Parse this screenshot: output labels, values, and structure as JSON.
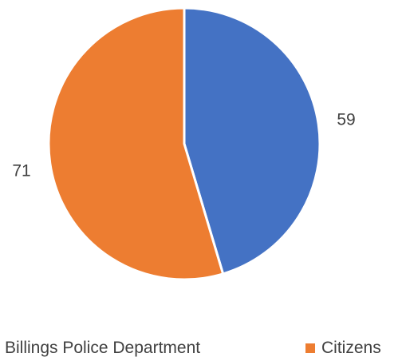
{
  "chart_data": {
    "type": "pie",
    "categories": [
      "Billings Police Department",
      "Citizens"
    ],
    "values": [
      59,
      71
    ],
    "colors": [
      "#4472c4",
      "#ed7d31"
    ],
    "data_labels": [
      "59",
      "71"
    ],
    "legend_position": "bottom",
    "start_angle": "top, clockwise"
  }
}
